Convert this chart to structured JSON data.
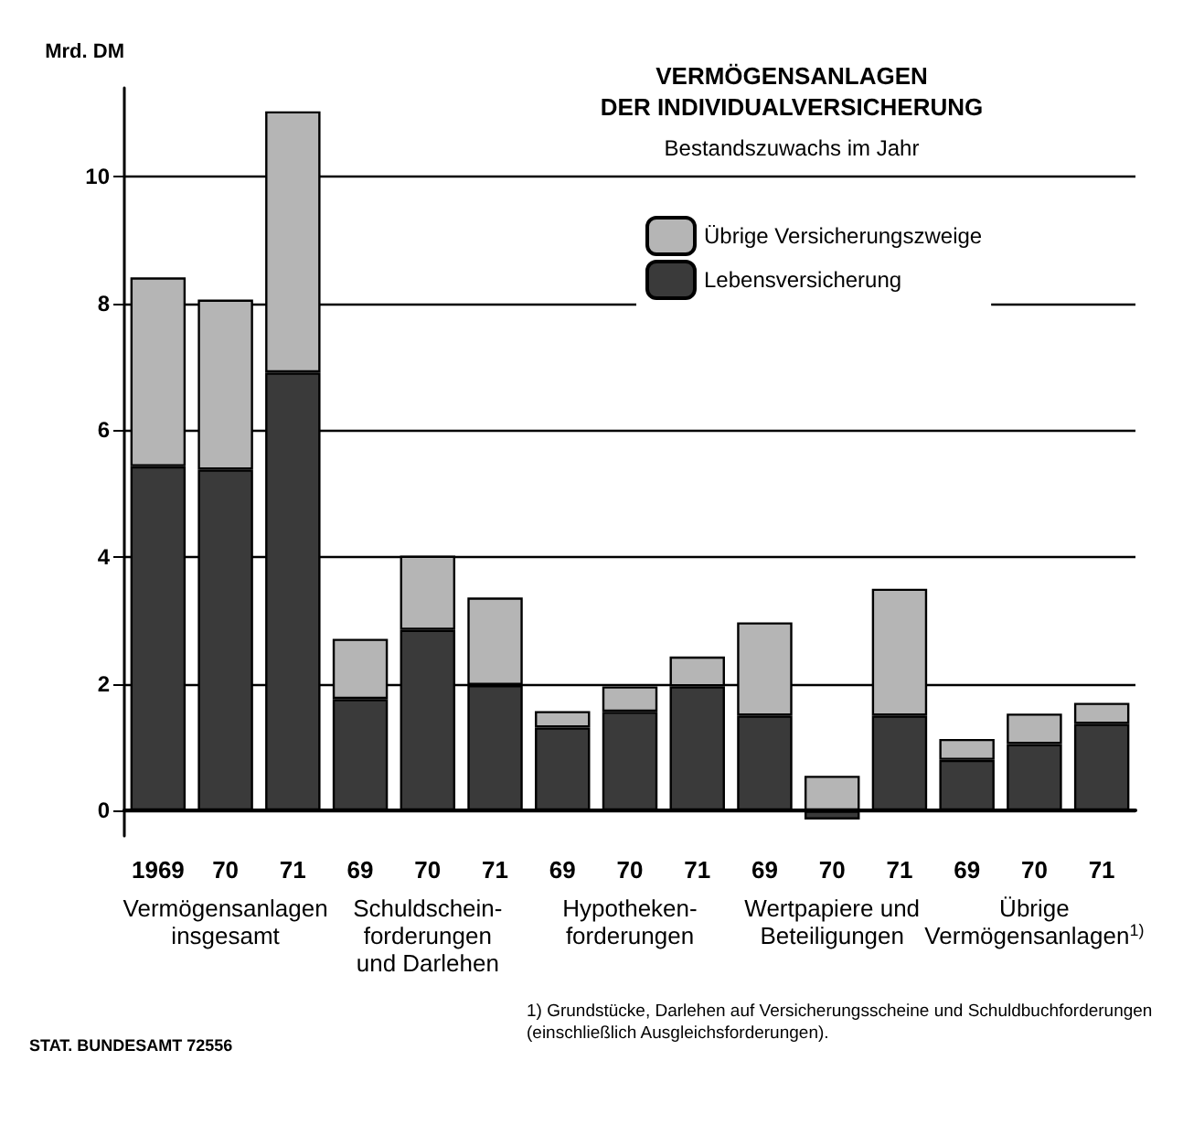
{
  "chart_data": {
    "type": "bar",
    "title": "VERMÖGENSANLAGEN\nDER INDIVIDUALVERSICHERUNG",
    "subtitle": "Bestandszuwachs im Jahr",
    "ylabel": "Mrd. DM",
    "categories": [
      "1969",
      "70",
      "71",
      "69",
      "70",
      "71",
      "69",
      "70",
      "71",
      "69",
      "70",
      "71",
      "69",
      "70",
      "71"
    ],
    "stacked": true,
    "series": [
      {
        "name": "Lebensversicherung",
        "color": "#3a3a3a",
        "values": [
          5.43,
          5.38,
          6.91,
          1.76,
          2.85,
          1.98,
          1.31,
          1.56,
          1.96,
          1.5,
          -0.14,
          1.5,
          0.8,
          1.05,
          1.37
        ]
      },
      {
        "name": "Übrige Versicherungszweige",
        "color": "#b5b5b5",
        "values": [
          2.98,
          2.68,
          4.12,
          0.95,
          1.17,
          1.38,
          0.26,
          0.4,
          0.47,
          1.47,
          0.55,
          2.0,
          0.33,
          0.48,
          0.33
        ]
      }
    ],
    "ylim": [
      -0.4,
      11.4
    ],
    "yticks": [
      0,
      2,
      4,
      6,
      8,
      10
    ],
    "grid": "y",
    "legend": "top right",
    "annotations": [
      "Vermögensanlagen\ninsgesamt",
      "Schuldschein-\nforderungen\nund Darlehen",
      "Hypotheken-\nforderungen",
      "Wertpapiere und\nBeteiligungen",
      "Übrige\nVermögensanlagen$^{1)}$",
      "1) Grundstücke, Darlehen auf Versicherungsscheine und Schuldbuchforderungen\n(einschließlich Ausgleichsforderungen).",
      "STAT. BUNDESAMT 72556"
    ]
  }
}
